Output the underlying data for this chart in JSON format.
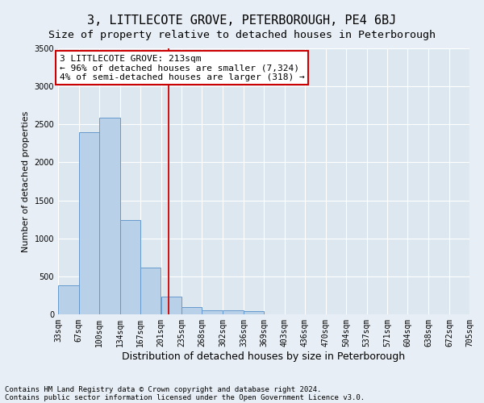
{
  "title": "3, LITTLECOTE GROVE, PETERBOROUGH, PE4 6BJ",
  "subtitle": "Size of property relative to detached houses in Peterborough",
  "xlabel": "Distribution of detached houses by size in Peterborough",
  "ylabel": "Number of detached properties",
  "footnote1": "Contains HM Land Registry data © Crown copyright and database right 2024.",
  "footnote2": "Contains public sector information licensed under the Open Government Licence v3.0.",
  "bar_edges": [
    33,
    67,
    100,
    134,
    167,
    201,
    235,
    268,
    302,
    336,
    369,
    403,
    436,
    470,
    504,
    537,
    571,
    604,
    638,
    672,
    705
  ],
  "bar_heights": [
    380,
    2400,
    2590,
    1240,
    620,
    230,
    100,
    55,
    55,
    40,
    0,
    0,
    0,
    0,
    0,
    0,
    0,
    0,
    0,
    0
  ],
  "bar_color": "#b8d0e8",
  "bar_edge_color": "#6699cc",
  "property_size": 213,
  "vline_color": "#cc0000",
  "annotation_line1": "3 LITTLECOTE GROVE: 213sqm",
  "annotation_line2": "← 96% of detached houses are smaller (7,324)",
  "annotation_line3": "4% of semi-detached houses are larger (318) →",
  "annotation_box_edgecolor": "#cc0000",
  "annotation_box_facecolor": "#ffffff",
  "ylim": [
    0,
    3500
  ],
  "yticks": [
    0,
    500,
    1000,
    1500,
    2000,
    2500,
    3000,
    3500
  ],
  "background_color": "#e8eef5",
  "plot_bg_color": "#dce7f0",
  "grid_color": "#ffffff",
  "title_fontsize": 11,
  "subtitle_fontsize": 9.5,
  "annotation_fontsize": 8,
  "ylabel_fontsize": 8,
  "xlabel_fontsize": 9,
  "tick_fontsize": 7,
  "footnote_fontsize": 6.5,
  "tick_labels": [
    "33sqm",
    "67sqm",
    "100sqm",
    "134sqm",
    "167sqm",
    "201sqm",
    "235sqm",
    "268sqm",
    "302sqm",
    "336sqm",
    "369sqm",
    "403sqm",
    "436sqm",
    "470sqm",
    "504sqm",
    "537sqm",
    "571sqm",
    "604sqm",
    "638sqm",
    "672sqm",
    "705sqm"
  ]
}
